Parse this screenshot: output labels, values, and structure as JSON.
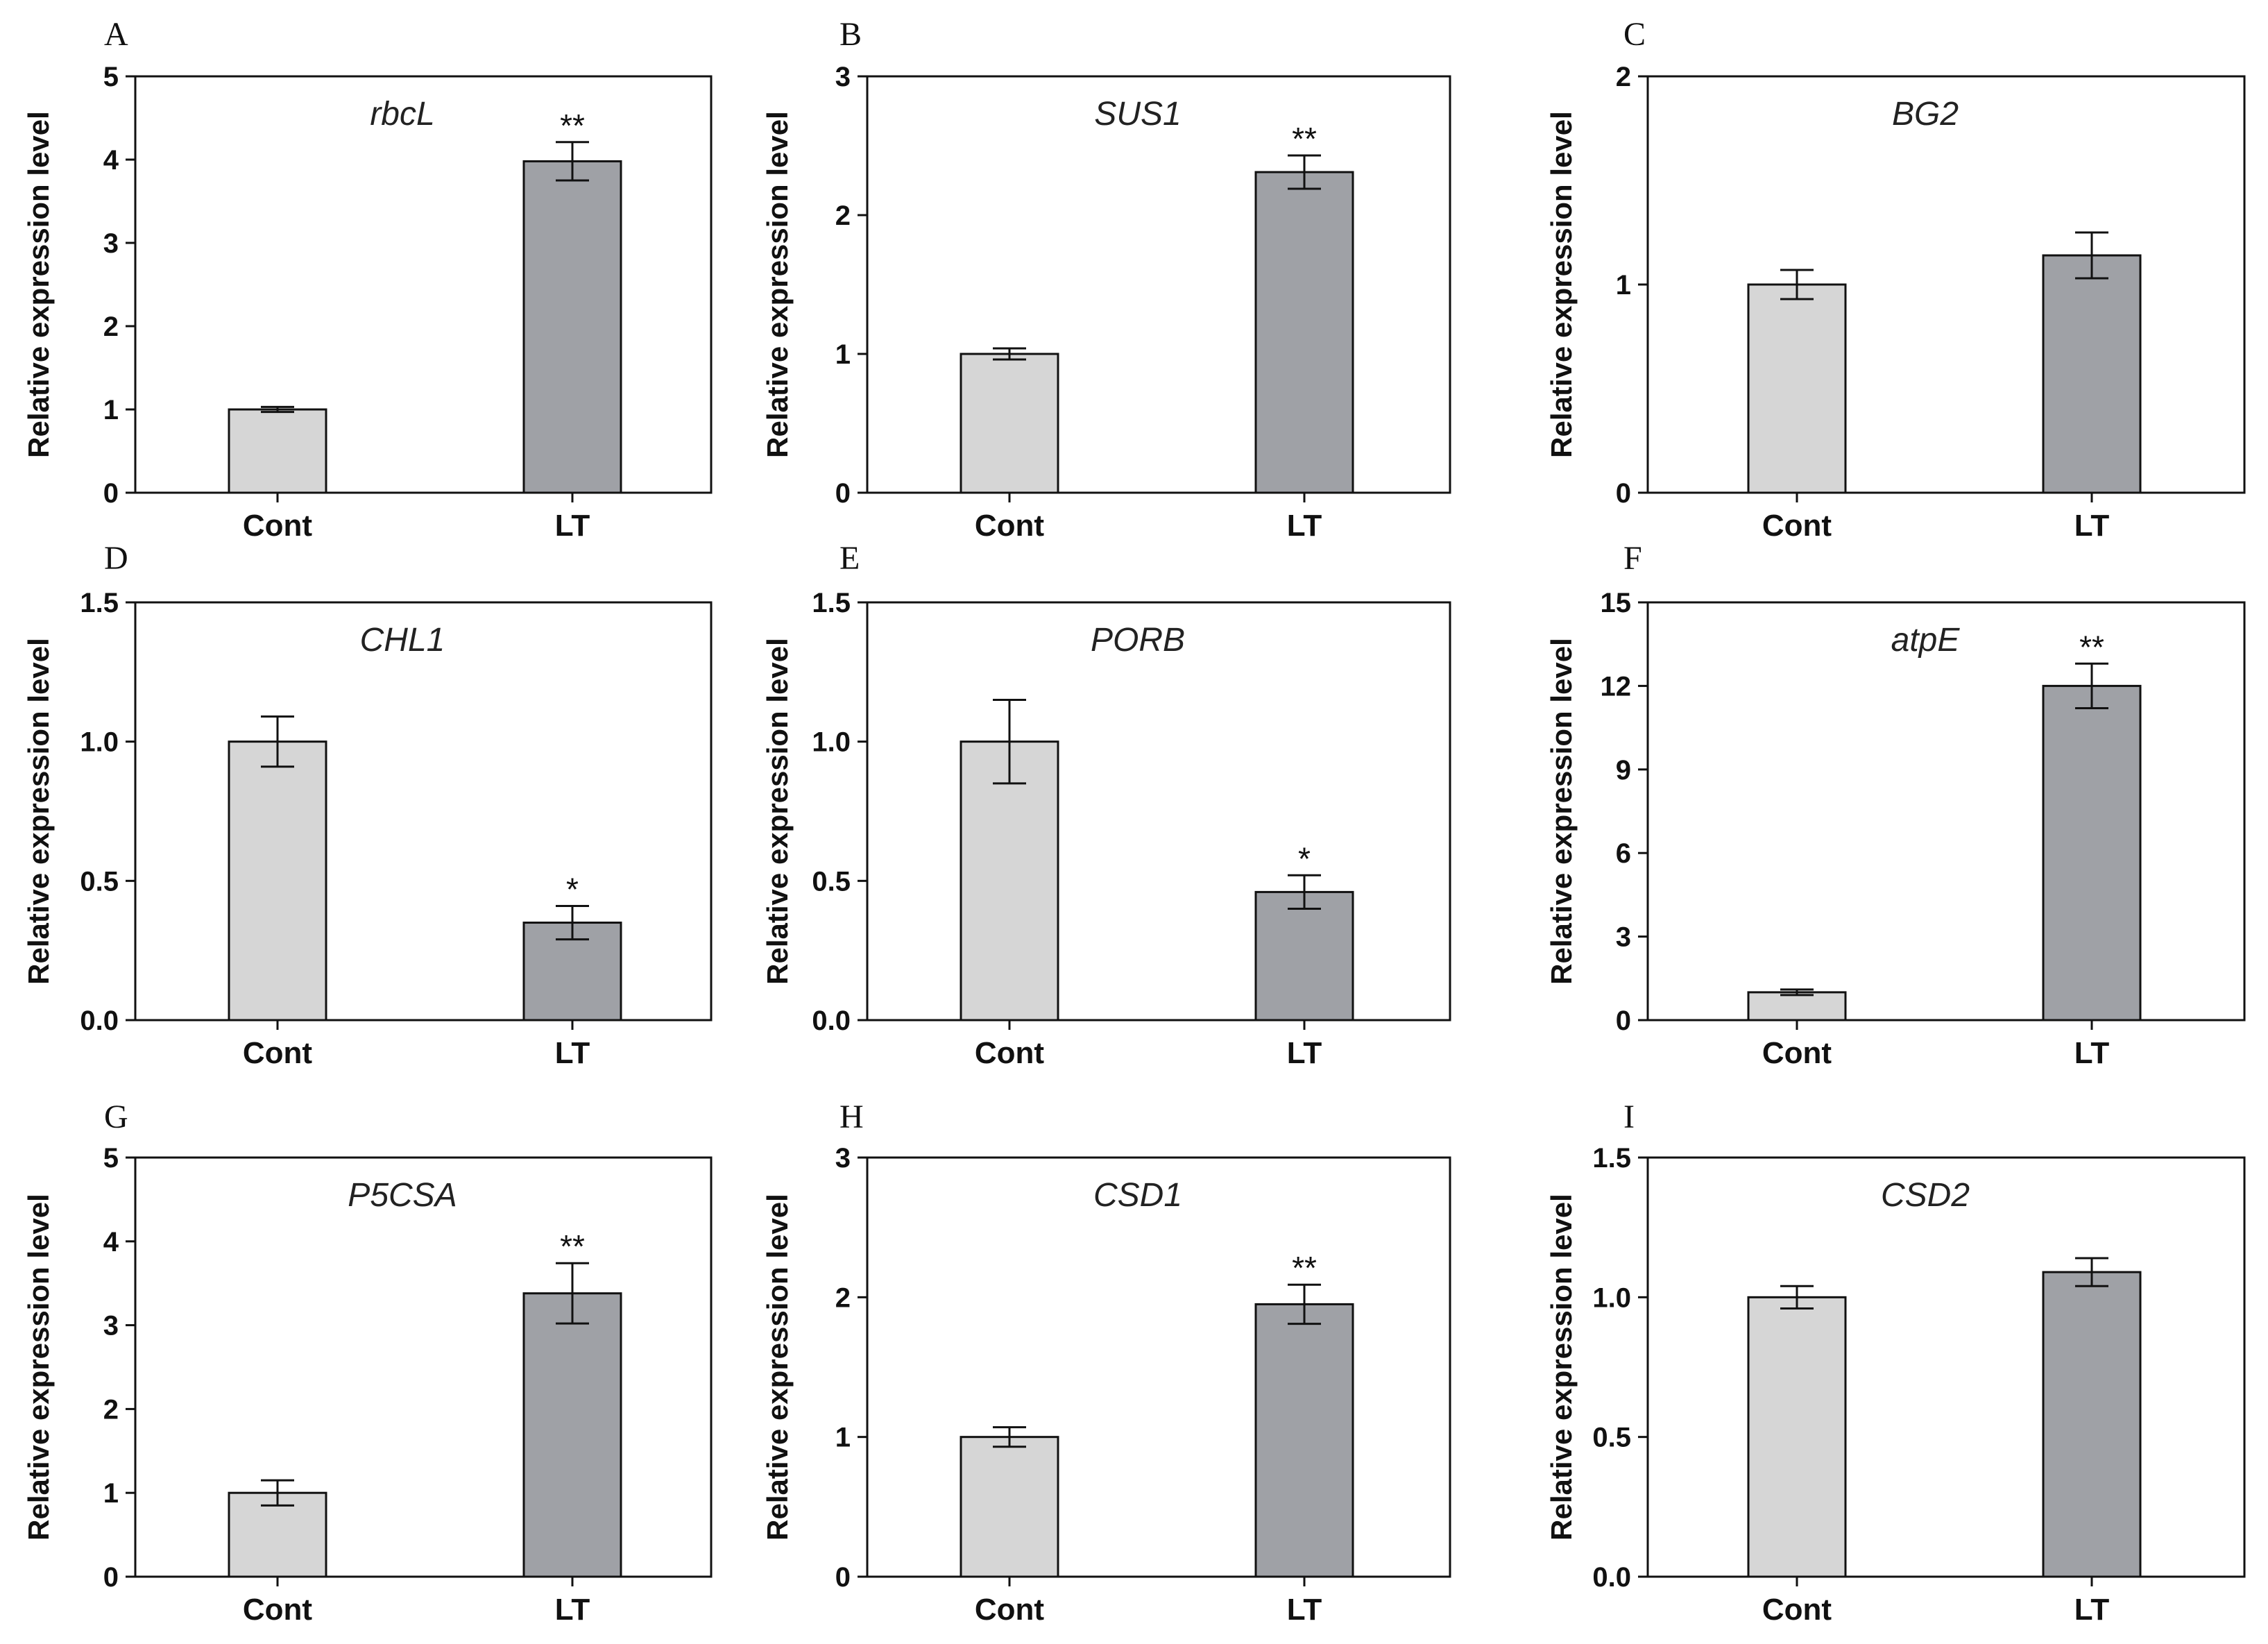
{
  "figure": {
    "colors": {
      "Cont": "#d6d6d6",
      "LT": "#9fa1a6",
      "stroke": "#111111"
    }
  },
  "chart_data": [
    {
      "panel": "A",
      "type": "bar",
      "title": "rbcL",
      "ylabel": "Relative expression level",
      "categories": [
        "Cont",
        "LT"
      ],
      "values": [
        1.0,
        3.98
      ],
      "errors": [
        0.03,
        0.23
      ],
      "significance": [
        "",
        "**"
      ],
      "ylim": [
        0,
        5
      ],
      "yticks": [
        "0",
        "1",
        "2",
        "3",
        "4",
        "5"
      ],
      "ytick_values": [
        0,
        1,
        2,
        3,
        4,
        5
      ]
    },
    {
      "panel": "B",
      "type": "bar",
      "title": "SUS1",
      "ylabel": "Relative expression level",
      "categories": [
        "Cont",
        "LT"
      ],
      "values": [
        1.0,
        2.31
      ],
      "errors": [
        0.04,
        0.12
      ],
      "significance": [
        "",
        "**"
      ],
      "ylim": [
        0,
        3
      ],
      "yticks": [
        "0",
        "1",
        "2",
        "3"
      ],
      "ytick_values": [
        0,
        1,
        2,
        3
      ]
    },
    {
      "panel": "C",
      "type": "bar",
      "title": "BG2",
      "ylabel": "Relative expression level",
      "categories": [
        "Cont",
        "LT"
      ],
      "values": [
        1.0,
        1.14
      ],
      "errors": [
        0.07,
        0.11
      ],
      "significance": [
        "",
        ""
      ],
      "ylim": [
        0,
        2
      ],
      "yticks": [
        "0",
        "1",
        "2"
      ],
      "ytick_values": [
        0,
        1,
        2
      ]
    },
    {
      "panel": "D",
      "type": "bar",
      "title": "CHL1",
      "ylabel": "Relative expression level",
      "categories": [
        "Cont",
        "LT"
      ],
      "values": [
        1.0,
        0.35
      ],
      "errors": [
        0.09,
        0.06
      ],
      "significance": [
        "",
        "*"
      ],
      "ylim": [
        0,
        1.5
      ],
      "yticks": [
        "0.0",
        "0.5",
        "1.0",
        "1.5"
      ],
      "ytick_values": [
        0,
        0.5,
        1.0,
        1.5
      ]
    },
    {
      "panel": "E",
      "type": "bar",
      "title": "PORB",
      "ylabel": "Relative expression level",
      "categories": [
        "Cont",
        "LT"
      ],
      "values": [
        1.0,
        0.46
      ],
      "errors": [
        0.15,
        0.06
      ],
      "significance": [
        "",
        "*"
      ],
      "ylim": [
        0,
        1.5
      ],
      "yticks": [
        "0.0",
        "0.5",
        "1.0",
        "1.5"
      ],
      "ytick_values": [
        0,
        0.5,
        1.0,
        1.5
      ]
    },
    {
      "panel": "F",
      "type": "bar",
      "title": "atpE",
      "ylabel": "Relative expression level",
      "categories": [
        "Cont",
        "LT"
      ],
      "values": [
        1.0,
        12.0
      ],
      "errors": [
        0.1,
        0.8
      ],
      "significance": [
        "",
        "**"
      ],
      "ylim": [
        0,
        15
      ],
      "yticks": [
        "0",
        "3",
        "6",
        "9",
        "12",
        "15"
      ],
      "ytick_values": [
        0,
        3,
        6,
        9,
        12,
        15
      ]
    },
    {
      "panel": "G",
      "type": "bar",
      "title": "P5CSA",
      "ylabel": "Relative expression level",
      "categories": [
        "Cont",
        "LT"
      ],
      "values": [
        1.0,
        3.38
      ],
      "errors": [
        0.15,
        0.36
      ],
      "significance": [
        "",
        "**"
      ],
      "ylim": [
        0,
        5
      ],
      "yticks": [
        "0",
        "1",
        "2",
        "3",
        "4",
        "5"
      ],
      "ytick_values": [
        0,
        1,
        2,
        3,
        4,
        5
      ]
    },
    {
      "panel": "H",
      "type": "bar",
      "title": "CSD1",
      "ylabel": "Relative expression level",
      "categories": [
        "Cont",
        "LT"
      ],
      "values": [
        1.0,
        1.95
      ],
      "errors": [
        0.07,
        0.14
      ],
      "significance": [
        "",
        "**"
      ],
      "ylim": [
        0,
        3
      ],
      "yticks": [
        "0",
        "1",
        "2",
        "3"
      ],
      "ytick_values": [
        0,
        1,
        2,
        3
      ]
    },
    {
      "panel": "I",
      "type": "bar",
      "title": "CSD2",
      "ylabel": "Relative expression level",
      "categories": [
        "Cont",
        "LT"
      ],
      "values": [
        1.0,
        1.09
      ],
      "errors": [
        0.04,
        0.05
      ],
      "significance": [
        "",
        ""
      ],
      "ylim": [
        0,
        1.5
      ],
      "yticks": [
        "0.0",
        "0.5",
        "1.0",
        "1.5"
      ],
      "ytick_values": [
        0,
        0.5,
        1.0,
        1.5
      ]
    }
  ]
}
